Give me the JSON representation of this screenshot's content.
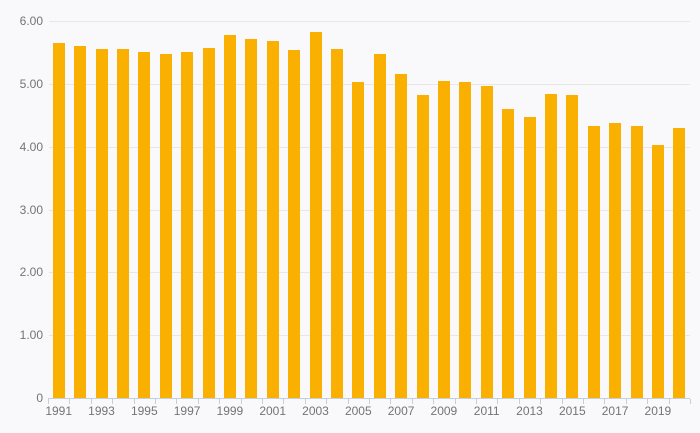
{
  "chart_data": {
    "type": "bar",
    "title": "",
    "xlabel": "",
    "ylabel": "",
    "categories": [
      1991,
      1992,
      1993,
      1994,
      1995,
      1996,
      1997,
      1998,
      1999,
      2000,
      2001,
      2002,
      2003,
      2004,
      2005,
      2006,
      2007,
      2008,
      2009,
      2010,
      2011,
      2012,
      2013,
      2014,
      2015,
      2016,
      2017,
      2018,
      2019,
      2020
    ],
    "values": [
      5.65,
      5.6,
      5.56,
      5.56,
      5.51,
      5.47,
      5.51,
      5.57,
      5.77,
      5.71,
      5.68,
      5.54,
      5.83,
      5.55,
      5.03,
      5.47,
      5.16,
      4.83,
      5.05,
      5.03,
      4.97,
      4.6,
      4.47,
      4.84,
      4.82,
      4.33,
      4.38,
      4.33,
      4.02,
      4.3
    ],
    "ylim": [
      0,
      6
    ],
    "ytick_values": [
      6,
      5,
      4,
      3,
      2,
      1,
      0
    ],
    "ytick_labels": [
      "6.00",
      "5.00",
      "4.00",
      "3.00",
      "2.00",
      "1.00",
      "0"
    ],
    "xtick_labels": [
      "1991",
      "1993",
      "1995",
      "1997",
      "1999",
      "2001",
      "2003",
      "2005",
      "2007",
      "2009",
      "2011",
      "2013",
      "2015",
      "2017",
      "2019"
    ],
    "grid": true,
    "legend": false,
    "colors": {
      "bar": "#f9b000",
      "background": "#f9f9fb",
      "gridline": "#e7e7e9",
      "axis": "#c5cede",
      "label_text": "#747474"
    }
  }
}
